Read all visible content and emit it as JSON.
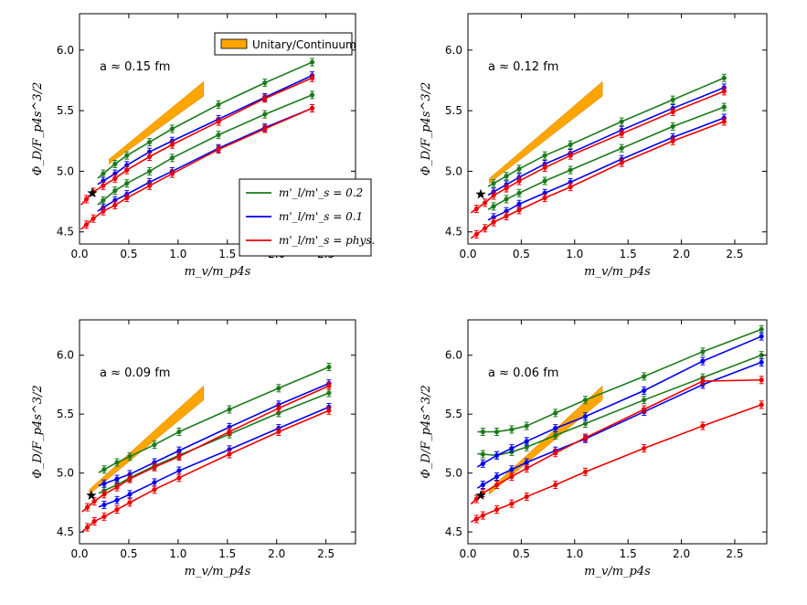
{
  "figure": {
    "colors": {
      "green": "#1a7a1a",
      "blue": "#0000ee",
      "red": "#ee0000",
      "band": "#ffa500",
      "star": "#000000"
    },
    "legend": {
      "band_label": "Unitary/Continuum",
      "series_labels": [
        "m'_l/m'_s = 0.2",
        "m'_l/m'_s = 0.1",
        "m'_l/m'_s = phys."
      ]
    }
  },
  "chart_data": [
    {
      "type": "line",
      "title": "a ≈ 0.15 fm",
      "annotation": "a ≈ 0.15 fm",
      "xlabel": "m_v/m_p4s",
      "ylabel": "Φ_D/F_p4s^3/2",
      "xlim": [
        0.0,
        2.8
      ],
      "ylim": [
        4.4,
        6.3
      ],
      "xticks": [
        0.0,
        0.5,
        1.0,
        1.5,
        2.0,
        2.5
      ],
      "xtick_labels": [
        "0.0",
        "0.5",
        "1.0",
        "1.5",
        "2.0",
        "2.5"
      ],
      "yticks": [
        4.5,
        5.0,
        5.5,
        6.0
      ],
      "ytick_labels": [
        "4.5",
        "5.0",
        "5.5",
        "6.0"
      ],
      "x": [
        0.07,
        0.14,
        0.24,
        0.36,
        0.48,
        0.71,
        0.94,
        1.41,
        1.88,
        2.36
      ],
      "series": [
        {
          "name": "m'_l/m'_s = 0.2 (upper)",
          "color": "green",
          "values": [
            null,
            null,
            4.98,
            5.06,
            5.13,
            5.24,
            5.35,
            5.55,
            5.73,
            5.9
          ]
        },
        {
          "name": "m'_l/m'_s = 0.2 (lower)",
          "color": "green",
          "values": [
            null,
            null,
            4.76,
            4.84,
            4.9,
            5.0,
            5.11,
            5.3,
            5.47,
            5.63
          ]
        },
        {
          "name": "m'_l/m'_s = 0.1 (upper)",
          "color": "blue",
          "values": [
            null,
            null,
            4.92,
            4.98,
            5.05,
            5.16,
            5.25,
            5.43,
            5.61,
            5.79
          ]
        },
        {
          "name": "m'_l/m'_s = 0.1 (lower)",
          "color": "blue",
          "values": [
            null,
            null,
            4.7,
            4.76,
            4.81,
            4.91,
            5.0,
            5.19,
            5.36,
            5.52
          ]
        },
        {
          "name": "m'_l/m'_s = phys. (upper)",
          "color": "red",
          "values": [
            4.77,
            4.83,
            4.88,
            4.94,
            5.01,
            5.12,
            5.22,
            5.41,
            5.6,
            5.77
          ]
        },
        {
          "name": "m'_l/m'_s = phys. (lower)",
          "color": "red",
          "values": [
            4.56,
            4.61,
            4.67,
            4.72,
            4.78,
            4.88,
            4.98,
            5.18,
            5.35,
            5.52
          ]
        }
      ],
      "band": {
        "x": [
          0.3,
          1.26
        ],
        "lower": [
          5.06,
          5.62
        ],
        "upper": [
          5.1,
          5.74
        ]
      },
      "star": {
        "x": 0.13,
        "y": 4.82
      },
      "legend": true
    },
    {
      "type": "line",
      "title": "a ≈ 0.12 fm",
      "annotation": "a ≈ 0.12 fm",
      "xlabel": "m_v/m_p4s",
      "ylabel": "Φ_D/F_p4s^3/2",
      "xlim": [
        0.0,
        2.8
      ],
      "ylim": [
        4.4,
        6.3
      ],
      "xticks": [
        0.0,
        0.5,
        1.0,
        1.5,
        2.0,
        2.5
      ],
      "xtick_labels": [
        "0.0",
        "0.5",
        "1.0",
        "1.5",
        "2.0",
        "2.5"
      ],
      "yticks": [
        4.5,
        5.0,
        5.5,
        6.0
      ],
      "ytick_labels": [
        "4.5",
        "5.0",
        "5.5",
        "6.0"
      ],
      "x": [
        0.08,
        0.16,
        0.24,
        0.36,
        0.48,
        0.72,
        0.96,
        1.44,
        1.92,
        2.4
      ],
      "series": [
        {
          "name": "m'_l/m'_s = 0.2 (upper)",
          "color": "green",
          "values": [
            null,
            null,
            4.9,
            4.96,
            5.02,
            5.13,
            5.22,
            5.41,
            5.59,
            5.77
          ]
        },
        {
          "name": "m'_l/m'_s = 0.2 (lower)",
          "color": "green",
          "values": [
            null,
            null,
            4.71,
            4.77,
            4.82,
            4.92,
            5.01,
            5.19,
            5.37,
            5.53
          ]
        },
        {
          "name": "m'_l/m'_s = 0.1 (upper)",
          "color": "blue",
          "values": [
            null,
            null,
            4.83,
            4.89,
            4.95,
            5.06,
            5.15,
            5.34,
            5.52,
            5.69
          ]
        },
        {
          "name": "m'_l/m'_s = 0.1 (lower)",
          "color": "blue",
          "values": [
            null,
            null,
            4.62,
            4.67,
            4.73,
            4.82,
            4.91,
            5.1,
            5.28,
            5.44
          ]
        },
        {
          "name": "m'_l/m'_s = phys. (upper)",
          "color": "red",
          "values": [
            4.69,
            4.74,
            4.8,
            4.86,
            4.92,
            5.03,
            5.13,
            5.31,
            5.49,
            5.66
          ]
        },
        {
          "name": "m'_l/m'_s = phys. (lower)",
          "color": "red",
          "values": [
            4.48,
            4.53,
            4.58,
            4.63,
            4.68,
            4.78,
            4.87,
            5.07,
            5.25,
            5.41
          ]
        }
      ],
      "band": {
        "x": [
          0.2,
          1.26
        ],
        "lower": [
          4.9,
          5.62
        ],
        "upper": [
          4.94,
          5.74
        ]
      },
      "star": {
        "x": 0.12,
        "y": 4.81
      },
      "legend": false
    },
    {
      "type": "line",
      "title": "a ≈ 0.09 fm",
      "annotation": "a ≈ 0.09 fm",
      "xlabel": "m_v/m_p4s",
      "ylabel": "Φ_D/F_p4s^3/2",
      "xlim": [
        0.0,
        2.8
      ],
      "ylim": [
        4.4,
        6.3
      ],
      "xticks": [
        0.0,
        0.5,
        1.0,
        1.5,
        2.0,
        2.5
      ],
      "xtick_labels": [
        "0.0",
        "0.5",
        "1.0",
        "1.5",
        "2.0",
        "2.5"
      ],
      "yticks": [
        4.5,
        5.0,
        5.5,
        6.0
      ],
      "ytick_labels": [
        "4.5",
        "5.0",
        "5.5",
        "6.0"
      ],
      "x": [
        0.08,
        0.15,
        0.25,
        0.38,
        0.51,
        0.76,
        1.01,
        1.52,
        2.02,
        2.53
      ],
      "series": [
        {
          "name": "m'_l/m'_s = 0.2 (upper)",
          "color": "green",
          "values": [
            null,
            null,
            5.03,
            5.09,
            5.14,
            5.24,
            5.35,
            5.54,
            5.72,
            5.9
          ]
        },
        {
          "name": "m'_l/m'_s = 0.2 (lower)",
          "color": "green",
          "values": [
            null,
            null,
            4.85,
            4.9,
            4.96,
            5.06,
            5.15,
            5.33,
            5.51,
            5.68
          ]
        },
        {
          "name": "m'_l/m'_s = 0.1 (upper)",
          "color": "blue",
          "values": [
            null,
            null,
            4.91,
            4.95,
            4.99,
            5.09,
            5.19,
            5.39,
            5.58,
            5.76
          ]
        },
        {
          "name": "m'_l/m'_s = 0.1 (lower)",
          "color": "blue",
          "values": [
            null,
            null,
            4.73,
            4.77,
            4.82,
            4.92,
            5.02,
            5.2,
            5.38,
            5.56
          ]
        },
        {
          "name": "m'_l/m'_s = phys. (upper)",
          "color": "red",
          "values": [
            4.71,
            4.76,
            4.82,
            4.88,
            4.95,
            5.05,
            5.14,
            5.35,
            5.55,
            5.74
          ]
        },
        {
          "name": "m'_l/m'_s = phys. (lower)",
          "color": "red",
          "values": [
            4.54,
            4.59,
            4.63,
            4.69,
            4.75,
            4.86,
            4.96,
            5.16,
            5.35,
            5.53
          ]
        }
      ],
      "band": {
        "x": [
          0.1,
          1.26
        ],
        "lower": [
          4.82,
          5.62
        ],
        "upper": [
          4.86,
          5.74
        ]
      },
      "star": {
        "x": 0.12,
        "y": 4.81
      },
      "legend": false
    },
    {
      "type": "line",
      "title": "a ≈ 0.06 fm",
      "annotation": "a ≈ 0.06 fm",
      "xlabel": "m_v/m_p4s",
      "ylabel": "Φ_D/F_p4s^3/2",
      "xlim": [
        0.0,
        2.8
      ],
      "ylim": [
        4.4,
        6.3
      ],
      "xticks": [
        0.0,
        0.5,
        1.0,
        1.5,
        2.0,
        2.5
      ],
      "xtick_labels": [
        "0.0",
        "0.5",
        "1.0",
        "1.5",
        "2.0",
        "2.5"
      ],
      "yticks": [
        4.5,
        5.0,
        5.5,
        6.0
      ],
      "ytick_labels": [
        "4.5",
        "5.0",
        "5.5",
        "6.0"
      ],
      "x": [
        0.08,
        0.14,
        0.27,
        0.41,
        0.55,
        0.82,
        1.1,
        1.65,
        2.2,
        2.75
      ],
      "series": [
        {
          "name": "m'_l/m'_s = 0.2 (upper)",
          "color": "green",
          "values": [
            null,
            5.35,
            5.35,
            5.37,
            5.4,
            5.51,
            5.62,
            5.82,
            6.03,
            6.22
          ]
        },
        {
          "name": "m'_l/m'_s = 0.2 (lower)",
          "color": "green",
          "values": [
            null,
            5.16,
            5.15,
            5.18,
            5.22,
            5.32,
            5.42,
            5.62,
            5.81,
            6.0
          ]
        },
        {
          "name": "m'_l/m'_s = 0.1 (upper)",
          "color": "blue",
          "values": [
            null,
            5.08,
            5.15,
            5.21,
            5.27,
            5.38,
            5.48,
            5.7,
            5.95,
            6.16
          ]
        },
        {
          "name": "m'_l/m'_s = 0.1 (lower)",
          "color": "blue",
          "values": [
            null,
            4.9,
            4.97,
            5.03,
            5.09,
            5.19,
            5.29,
            5.52,
            5.75,
            5.94
          ]
        },
        {
          "name": "m'_l/m'_s = phys. (upper)",
          "color": "red",
          "values": [
            4.78,
            4.83,
            4.9,
            4.97,
            5.04,
            5.17,
            5.3,
            5.54,
            5.78,
            5.79
          ]
        },
        {
          "name": "m'_l/m'_s = phys. (lower)",
          "color": "red",
          "values": [
            4.61,
            4.64,
            4.69,
            4.74,
            4.8,
            4.9,
            5.01,
            5.21,
            5.4,
            5.58
          ]
        }
      ],
      "band": {
        "x": [
          0.2,
          1.26
        ],
        "lower": [
          4.82,
          5.62
        ],
        "upper": [
          4.86,
          5.74
        ]
      },
      "star": {
        "x": 0.12,
        "y": 4.81
      },
      "legend": false
    }
  ]
}
